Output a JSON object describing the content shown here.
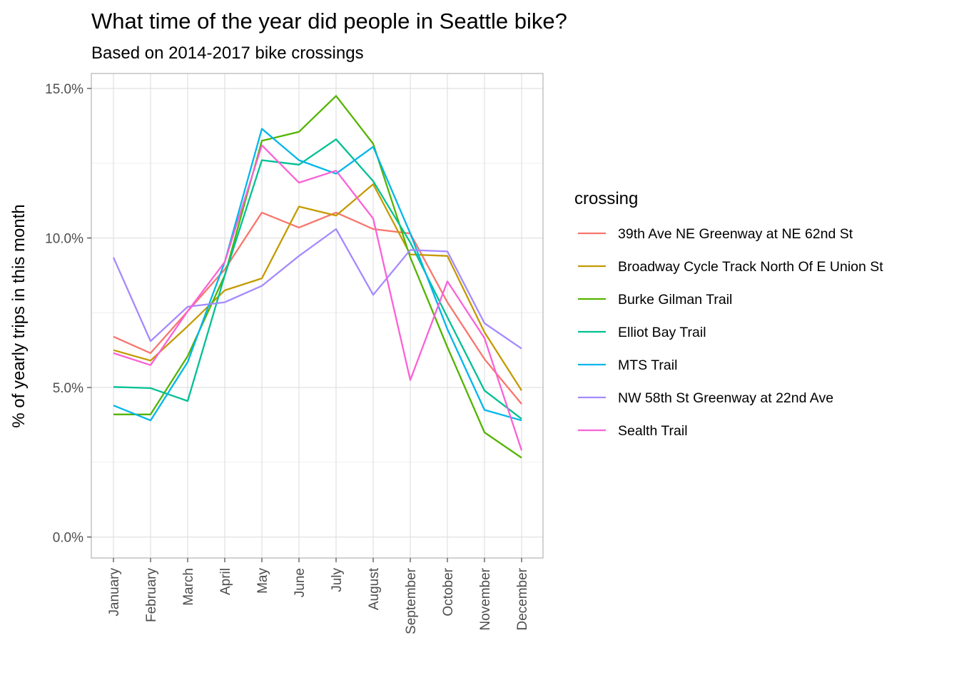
{
  "chart_data": {
    "type": "line",
    "title": "What time of the year did people in Seattle bike?",
    "subtitle": "Based on 2014-2017 bike crossings",
    "xlabel": "",
    "ylabel": "% of yearly trips in this month",
    "categories": [
      "January",
      "February",
      "March",
      "April",
      "May",
      "June",
      "July",
      "August",
      "September",
      "October",
      "November",
      "December"
    ],
    "ylim": [
      -0.007,
      0.155
    ],
    "y_ticks": [
      0.0,
      0.05,
      0.1,
      0.15
    ],
    "y_tick_labels": [
      "0.0%",
      "5.0%",
      "10.0%",
      "15.0%"
    ],
    "grid": true,
    "legend": {
      "title": "crossing",
      "position": "right"
    },
    "series": [
      {
        "name": "39th Ave NE Greenway at NE 62nd St",
        "color": "#F8766D",
        "values": [
          0.067,
          0.0615,
          0.0755,
          0.0895,
          0.1085,
          0.1035,
          0.1085,
          0.103,
          0.1015,
          0.0785,
          0.0595,
          0.0445
        ]
      },
      {
        "name": "Broadway Cycle Track North Of E Union St",
        "color": "#C49A00",
        "values": [
          0.0625,
          0.059,
          0.0705,
          0.0825,
          0.0865,
          0.1105,
          0.1075,
          0.118,
          0.0945,
          0.094,
          0.0685,
          0.049
        ]
      },
      {
        "name": "Burke Gilman Trail",
        "color": "#53B400",
        "values": [
          0.041,
          0.041,
          0.0605,
          0.0875,
          0.1325,
          0.1355,
          0.1475,
          0.1315,
          0.0935,
          0.0635,
          0.035,
          0.0265
        ]
      },
      {
        "name": "Elliot Bay Trail",
        "color": "#00C094",
        "values": [
          0.0502,
          0.0498,
          0.0455,
          0.0875,
          0.126,
          0.1245,
          0.133,
          0.119,
          0.0985,
          0.0735,
          0.049,
          0.0395
        ]
      },
      {
        "name": "MTS Trail",
        "color": "#00B6EB",
        "values": [
          0.044,
          0.039,
          0.0585,
          0.092,
          0.1365,
          0.126,
          0.1215,
          0.1305,
          0.1015,
          0.0695,
          0.0425,
          0.039
        ]
      },
      {
        "name": "NW 58th St Greenway at 22nd Ave",
        "color": "#A58AFF",
        "values": [
          0.0935,
          0.0655,
          0.077,
          0.0785,
          0.084,
          0.094,
          0.103,
          0.081,
          0.096,
          0.0955,
          0.0715,
          0.063
        ]
      },
      {
        "name": "Sealth Trail",
        "color": "#FB61D7",
        "values": [
          0.0615,
          0.0575,
          0.0755,
          0.092,
          0.131,
          0.1185,
          0.1225,
          0.1065,
          0.0525,
          0.0855,
          0.0665,
          0.029
        ]
      }
    ]
  }
}
